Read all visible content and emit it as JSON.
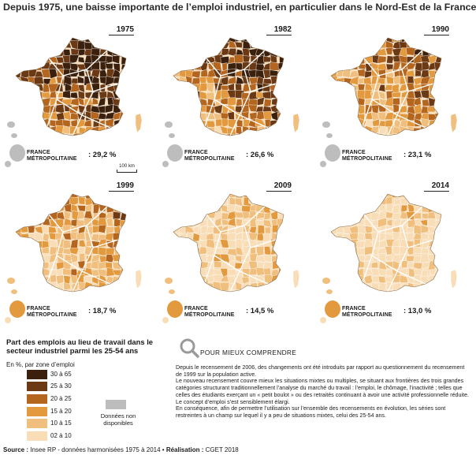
{
  "title": "Depuis 1975, une baisse importante de l’emploi industriel, en particulier dans le Nord-Est de la France",
  "france_label_line1": "FRANCE",
  "france_label_line2": "MÉTROPOLITAINE",
  "scale_label": "100 km",
  "maps": [
    {
      "year": "1975",
      "value": ": 29,2 %",
      "darkness": 0.82
    },
    {
      "year": "1982",
      "value": ": 26,6 %",
      "darkness": 0.7
    },
    {
      "year": "1990",
      "value": ": 23,1 %",
      "darkness": 0.55
    },
    {
      "year": "1999",
      "value": ": 18,7 %",
      "darkness": 0.4
    },
    {
      "year": "2009",
      "value": ": 14,5 %",
      "darkness": 0.2
    },
    {
      "year": "2014",
      "value": ": 13,0 %",
      "darkness": 0.12
    }
  ],
  "legend": {
    "title": "Part des emplois au lieu de travail dans le secteur industriel parmi les 25-54 ans",
    "unit": "En %, par zone d’emploi",
    "items": [
      {
        "label": "30 à 65",
        "color": "#3b200d"
      },
      {
        "label": "25 à 30",
        "color": "#6b3a14"
      },
      {
        "label": "20 à 25",
        "color": "#b4661f"
      },
      {
        "label": "15 à 20",
        "color": "#e39a3f"
      },
      {
        "label": "10 à 15",
        "color": "#f0bf7e"
      },
      {
        "label": "02 à 10",
        "color": "#f8ddb6"
      }
    ],
    "nodata_line1": "Données non",
    "nodata_line2": "disponibles",
    "nodata_color": "#bdbdbd"
  },
  "info": {
    "heading": "POUR MIEUX COMPRENDRE",
    "p1": "Depuis le recensement de 2006, des changements ont été introduits par rapport au questionnement du recensement de 1999 sur la population active.",
    "p2": "Le nouveau recensement couvre mieux les situations mixtes ou multiples, se situant aux frontières des trois grandes catégories structurant traditionnellement l’analyse du marché du travail : l’emploi, le chômage, l’inactivité ; telles que celles des étudiants exerçant un « petit boulot » ou des retraités continuant à avoir une activité professionnelle réduite.",
    "p3": "Le concept d’emploi s’est sensiblement élargi.",
    "p4": "En conséquence, afin de permettre l’utilisation sur l’ensemble des recensements en évolution, les séries sont restreintes à un champ sur lequel il y a peu de situations mixtes, celui des 25-54 ans."
  },
  "footer": {
    "source_label": "Source :",
    "source_text": "Insee RP - données harmonisées 1975 à 2014 •",
    "realisation_label": "Réalisation :",
    "realisation_text": "CGET 2018"
  }
}
